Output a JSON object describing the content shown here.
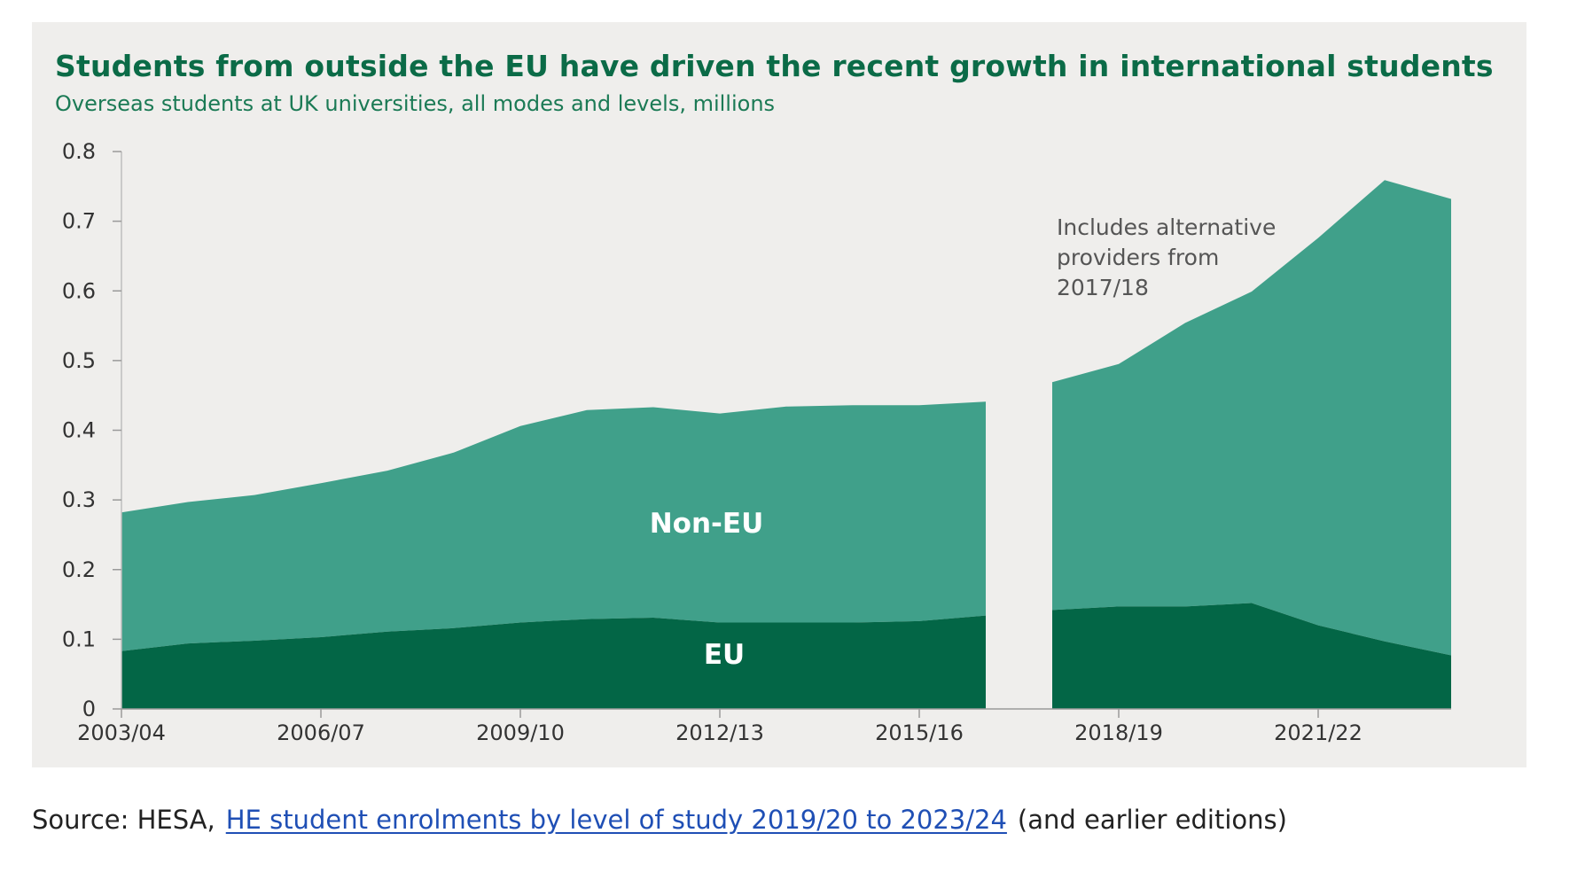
{
  "chart_data": {
    "type": "area",
    "stacked": true,
    "title": "Students from outside the EU have driven the recent growth in international students",
    "subtitle": "Overseas students at UK universities, all modes and levels, millions",
    "x": [
      "2003/04",
      "2004/05",
      "2005/06",
      "2006/07",
      "2007/08",
      "2008/09",
      "2009/10",
      "2010/11",
      "2011/12",
      "2012/13",
      "2013/14",
      "2014/15",
      "2015/16",
      "2016/17",
      "2017/18",
      "2018/19",
      "2019/20",
      "2020/21",
      "2021/22",
      "2022/23",
      "2023/24"
    ],
    "x_tick_labels": [
      "2003/04",
      "2006/07",
      "2009/10",
      "2012/13",
      "2015/16",
      "2018/19",
      "2021/22"
    ],
    "ylim": [
      0,
      0.8
    ],
    "y_ticks": [
      "0",
      "0.1",
      "0.2",
      "0.3",
      "0.4",
      "0.5",
      "0.6",
      "0.7",
      "0.8"
    ],
    "break_between": [
      "2016/17",
      "2017/18"
    ],
    "series": [
      {
        "name": "EU",
        "color": "#036646",
        "values": [
          0.083,
          0.094,
          0.098,
          0.103,
          0.111,
          0.116,
          0.124,
          0.129,
          0.131,
          0.124,
          0.124,
          0.124,
          0.126,
          0.134,
          0.142,
          0.147,
          0.147,
          0.152,
          0.12,
          0.097,
          0.077
        ]
      },
      {
        "name": "Non-EU",
        "color": "#40a08a",
        "values": [
          0.199,
          0.203,
          0.209,
          0.221,
          0.231,
          0.252,
          0.282,
          0.3,
          0.302,
          0.3,
          0.31,
          0.312,
          0.31,
          0.307,
          0.327,
          0.348,
          0.407,
          0.447,
          0.556,
          0.662,
          0.655
        ]
      }
    ],
    "annotations": [
      {
        "id": "alt",
        "lines": [
          "Includes alternative",
          "providers from",
          "2017/18"
        ]
      }
    ],
    "legend": "inline"
  },
  "source": {
    "prefix": "Source: HESA,",
    "link_text": "HE student enrolments by level of study 2019/20 to 2023/24",
    "suffix": "(and earlier editions)"
  }
}
